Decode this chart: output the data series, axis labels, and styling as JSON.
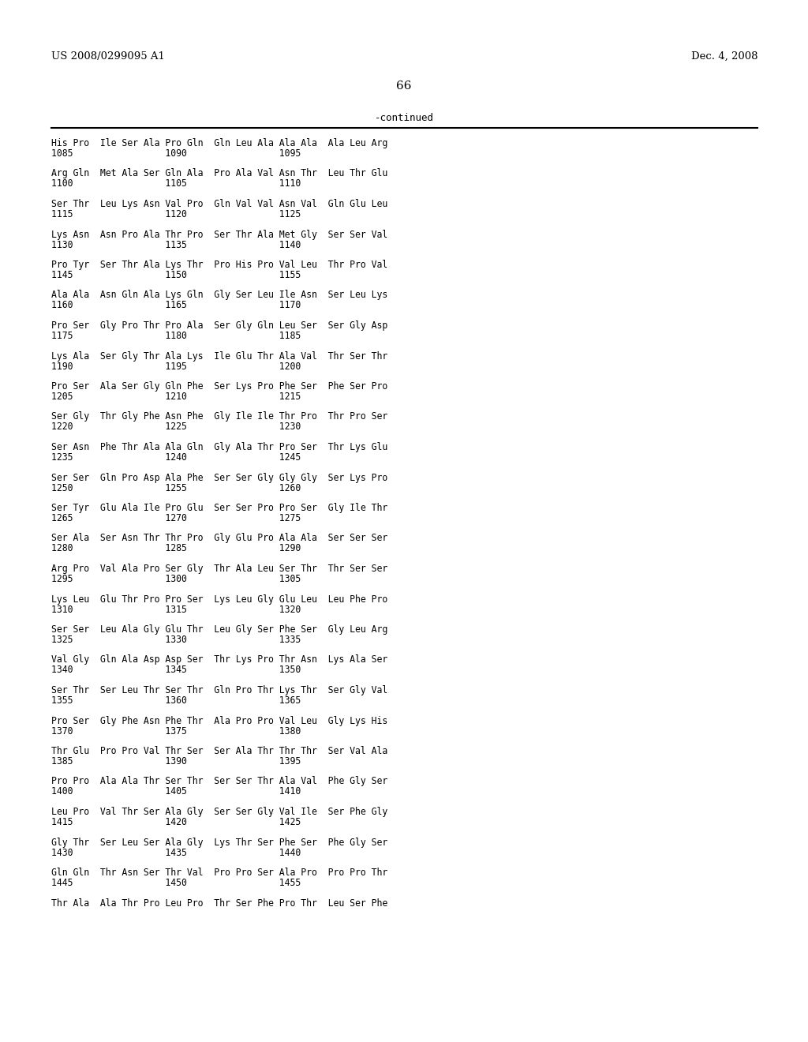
{
  "header_left": "US 2008/0299095 A1",
  "header_right": "Dec. 4, 2008",
  "page_number": "66",
  "continued_label": "-continued",
  "background_color": "#ffffff",
  "text_color": "#000000",
  "rows": [
    {
      "line1": "His Pro  Ile Ser Ala Pro Gln  Gln Leu Ala Ala Ala  Ala Leu Arg",
      "line2": "1085                 1090                 1095"
    },
    {
      "line1": "Arg Gln  Met Ala Ser Gln Ala  Pro Ala Val Asn Thr  Leu Thr Glu",
      "line2": "1100                 1105                 1110"
    },
    {
      "line1": "Ser Thr  Leu Lys Asn Val Pro  Gln Val Val Asn Val  Gln Glu Leu",
      "line2": "1115                 1120                 1125"
    },
    {
      "line1": "Lys Asn  Asn Pro Ala Thr Pro  Ser Thr Ala Met Gly  Ser Ser Val",
      "line2": "1130                 1135                 1140"
    },
    {
      "line1": "Pro Tyr  Ser Thr Ala Lys Thr  Pro His Pro Val Leu  Thr Pro Val",
      "line2": "1145                 1150                 1155"
    },
    {
      "line1": "Ala Ala  Asn Gln Ala Lys Gln  Gly Ser Leu Ile Asn  Ser Leu Lys",
      "line2": "1160                 1165                 1170"
    },
    {
      "line1": "Pro Ser  Gly Pro Thr Pro Ala  Ser Gly Gln Leu Ser  Ser Gly Asp",
      "line2": "1175                 1180                 1185"
    },
    {
      "line1": "Lys Ala  Ser Gly Thr Ala Lys  Ile Glu Thr Ala Val  Thr Ser Thr",
      "line2": "1190                 1195                 1200"
    },
    {
      "line1": "Pro Ser  Ala Ser Gly Gln Phe  Ser Lys Pro Phe Ser  Phe Ser Pro",
      "line2": "1205                 1210                 1215"
    },
    {
      "line1": "Ser Gly  Thr Gly Phe Asn Phe  Gly Ile Ile Thr Pro  Thr Pro Ser",
      "line2": "1220                 1225                 1230"
    },
    {
      "line1": "Ser Asn  Phe Thr Ala Ala Gln  Gly Ala Thr Pro Ser  Thr Lys Glu",
      "line2": "1235                 1240                 1245"
    },
    {
      "line1": "Ser Ser  Gln Pro Asp Ala Phe  Ser Ser Gly Gly Gly  Ser Lys Pro",
      "line2": "1250                 1255                 1260"
    },
    {
      "line1": "Ser Tyr  Glu Ala Ile Pro Glu  Ser Ser Pro Pro Ser  Gly Ile Thr",
      "line2": "1265                 1270                 1275"
    },
    {
      "line1": "Ser Ala  Ser Asn Thr Thr Pro  Gly Glu Pro Ala Ala  Ser Ser Ser",
      "line2": "1280                 1285                 1290"
    },
    {
      "line1": "Arg Pro  Val Ala Pro Ser Gly  Thr Ala Leu Ser Thr  Thr Ser Ser",
      "line2": "1295                 1300                 1305"
    },
    {
      "line1": "Lys Leu  Glu Thr Pro Pro Ser  Lys Leu Gly Glu Leu  Leu Phe Pro",
      "line2": "1310                 1315                 1320"
    },
    {
      "line1": "Ser Ser  Leu Ala Gly Glu Thr  Leu Gly Ser Phe Ser  Gly Leu Arg",
      "line2": "1325                 1330                 1335"
    },
    {
      "line1": "Val Gly  Gln Ala Asp Asp Ser  Thr Lys Pro Thr Asn  Lys Ala Ser",
      "line2": "1340                 1345                 1350"
    },
    {
      "line1": "Ser Thr  Ser Leu Thr Ser Thr  Gln Pro Thr Lys Thr  Ser Gly Val",
      "line2": "1355                 1360                 1365"
    },
    {
      "line1": "Pro Ser  Gly Phe Asn Phe Thr  Ala Pro Pro Val Leu  Gly Lys His",
      "line2": "1370                 1375                 1380"
    },
    {
      "line1": "Thr Glu  Pro Pro Val Thr Ser  Ser Ala Thr Thr Thr  Ser Val Ala",
      "line2": "1385                 1390                 1395"
    },
    {
      "line1": "Pro Pro  Ala Ala Thr Ser Thr  Ser Ser Thr Ala Val  Phe Gly Ser",
      "line2": "1400                 1405                 1410"
    },
    {
      "line1": "Leu Pro  Val Thr Ser Ala Gly  Ser Ser Gly Val Ile  Ser Phe Gly",
      "line2": "1415                 1420                 1425"
    },
    {
      "line1": "Gly Thr  Ser Leu Ser Ala Gly  Lys Thr Ser Phe Ser  Phe Gly Ser",
      "line2": "1430                 1435                 1440"
    },
    {
      "line1": "Gln Gln  Thr Asn Ser Thr Val  Pro Pro Ser Ala Pro  Pro Pro Thr",
      "line2": "1445                 1450                 1455"
    },
    {
      "line1": "Thr Ala  Ala Thr Pro Leu Pro  Thr Ser Phe Pro Thr  Leu Ser Phe",
      "line2": ""
    }
  ]
}
